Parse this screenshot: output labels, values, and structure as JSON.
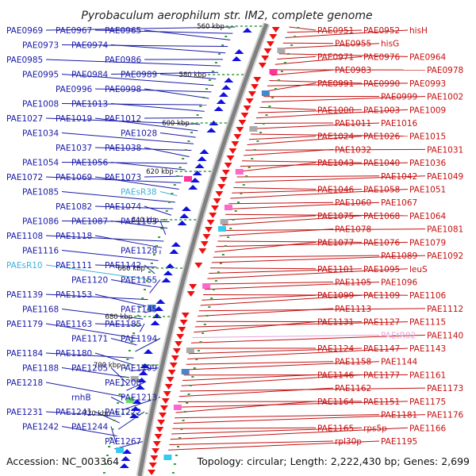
{
  "title": "Pyrobaculum aerophilum str. IM2, complete genome",
  "footer": {
    "accession": "Accession: NC_003364",
    "topology": "Topology: circular; Length: 2,222,430 bp; Genes: 2,699"
  },
  "colors": {
    "forward": "#1a1aa8",
    "reverse": "#c41010",
    "rna_forward": "#3fb0d8",
    "rna_reverse": "#e8a0d8",
    "backbone": "#808080",
    "tick": "#3a9a3a"
  },
  "kbp_ticks": [
    "560 kbp",
    "580 kbp",
    "600 kbp",
    "620 kbp",
    "640 kbp",
    "660 kbp",
    "680 kbp",
    "700 kbp",
    "720 kbp"
  ],
  "left_labels": [
    {
      "text": "PAE0969",
      "kind": "gene"
    },
    {
      "text": "PAE0967",
      "kind": "gene"
    },
    {
      "text": "PAE0965",
      "kind": "gene"
    },
    {
      "text": "PAE0973",
      "kind": "gene"
    },
    {
      "text": "PAE0974",
      "kind": "gene"
    },
    {
      "text": "PAE0986",
      "kind": "gene"
    },
    {
      "text": "PAE0985",
      "kind": "gene"
    },
    {
      "text": "PAE0984",
      "kind": "gene"
    },
    {
      "text": "PAE0989",
      "kind": "gene"
    },
    {
      "text": "PAE0995",
      "kind": "gene"
    },
    {
      "text": "PAE0996",
      "kind": "gene"
    },
    {
      "text": "PAE0998",
      "kind": "gene"
    },
    {
      "text": "PAE1008",
      "kind": "gene"
    },
    {
      "text": "PAE1013",
      "kind": "gene"
    },
    {
      "text": "PAE1012",
      "kind": "gene"
    },
    {
      "text": "PAE1027",
      "kind": "gene"
    },
    {
      "text": "PAE1019",
      "kind": "gene"
    },
    {
      "text": "PAE1028",
      "kind": "gene"
    },
    {
      "text": "PAE1034",
      "kind": "gene"
    },
    {
      "text": "PAE1037",
      "kind": "gene"
    },
    {
      "text": "PAE1038",
      "kind": "gene"
    },
    {
      "text": "PAE1054",
      "kind": "gene"
    },
    {
      "text": "PAE1056",
      "kind": "gene"
    },
    {
      "text": "PAE1073",
      "kind": "gene"
    },
    {
      "text": "PAE1072",
      "kind": "gene"
    },
    {
      "text": "PAE1069",
      "kind": "gene"
    },
    {
      "text": "PAEsR38",
      "kind": "rna"
    },
    {
      "text": "PAE1085",
      "kind": "gene"
    },
    {
      "text": "PAE1082",
      "kind": "gene"
    },
    {
      "text": "PAE1074",
      "kind": "gene"
    },
    {
      "text": "PAE1086",
      "kind": "gene"
    },
    {
      "text": "PAE1087",
      "kind": "gene"
    },
    {
      "text": "PAE1103",
      "kind": "gene"
    },
    {
      "text": "PAE1108",
      "kind": "gene"
    },
    {
      "text": "PAE1118",
      "kind": "gene"
    },
    {
      "text": "PAE1128",
      "kind": "gene"
    },
    {
      "text": "PAE1116",
      "kind": "gene"
    },
    {
      "text": "PAE1111",
      "kind": "gene"
    },
    {
      "text": "PAE1142",
      "kind": "gene"
    },
    {
      "text": "PAEsR10",
      "kind": "rna"
    },
    {
      "text": "PAE1120",
      "kind": "gene"
    },
    {
      "text": "PAE1155",
      "kind": "gene"
    },
    {
      "text": "PAE1139",
      "kind": "gene"
    },
    {
      "text": "PAE1153",
      "kind": "gene"
    },
    {
      "text": "PAE1145",
      "kind": "gene"
    },
    {
      "text": "PAE1168",
      "kind": "gene"
    },
    {
      "text": "PAE1163",
      "kind": "gene"
    },
    {
      "text": "PAE1185",
      "kind": "gene"
    },
    {
      "text": "PAE1179",
      "kind": "gene"
    },
    {
      "text": "PAE1171",
      "kind": "gene"
    },
    {
      "text": "PAE1194",
      "kind": "gene"
    },
    {
      "text": "PAE1184",
      "kind": "gene"
    },
    {
      "text": "PAE1180",
      "kind": "gene"
    },
    {
      "text": "PAE1199",
      "kind": "gene"
    },
    {
      "text": "PAE1188",
      "kind": "gene"
    },
    {
      "text": "PAE1205",
      "kind": "gene"
    },
    {
      "text": "PAE1200",
      "kind": "gene"
    },
    {
      "text": "PAE1218",
      "kind": "gene"
    },
    {
      "text": "rnhB",
      "kind": "gene"
    },
    {
      "text": "PAE1213",
      "kind": "gene"
    },
    {
      "text": "PAE1231",
      "kind": "gene"
    },
    {
      "text": "PAE1241",
      "kind": "gene"
    },
    {
      "text": "PAE1222",
      "kind": "gene"
    },
    {
      "text": "PAE1242",
      "kind": "gene"
    },
    {
      "text": "PAE1244",
      "kind": "gene"
    },
    {
      "text": "PAE1267",
      "kind": "gene"
    }
  ],
  "right_labels": [
    {
      "text": "PAE0951",
      "kind": "gene"
    },
    {
      "text": "PAE0952",
      "kind": "gene"
    },
    {
      "text": "hisH",
      "kind": "gene"
    },
    {
      "text": "PAE0955",
      "kind": "gene"
    },
    {
      "text": "hisG",
      "kind": "gene"
    },
    {
      "text": "PAE0964",
      "kind": "gene"
    },
    {
      "text": "PAE0971",
      "kind": "gene"
    },
    {
      "text": "PAE0976",
      "kind": "gene"
    },
    {
      "text": "PAE0978",
      "kind": "gene"
    },
    {
      "text": "PAE0983",
      "kind": "gene"
    },
    {
      "text": "PAE0990",
      "kind": "gene"
    },
    {
      "text": "PAE0993",
      "kind": "gene"
    },
    {
      "text": "PAE0991",
      "kind": "gene"
    },
    {
      "text": "PAE0999",
      "kind": "gene"
    },
    {
      "text": "PAE1002",
      "kind": "gene"
    },
    {
      "text": "PAE1000",
      "kind": "gene"
    },
    {
      "text": "PAE1003",
      "kind": "gene"
    },
    {
      "text": "PAE1009",
      "kind": "gene"
    },
    {
      "text": "PAE1011",
      "kind": "gene"
    },
    {
      "text": "PAE1016",
      "kind": "gene"
    },
    {
      "text": "PAE1015",
      "kind": "gene"
    },
    {
      "text": "PAE1024",
      "kind": "gene"
    },
    {
      "text": "PAE1026",
      "kind": "gene"
    },
    {
      "text": "PAE1031",
      "kind": "gene"
    },
    {
      "text": "PAE1032",
      "kind": "gene"
    },
    {
      "text": "PAE1040",
      "kind": "gene"
    },
    {
      "text": "PAE1036",
      "kind": "gene"
    },
    {
      "text": "PAE1043",
      "kind": "gene"
    },
    {
      "text": "PAE1042",
      "kind": "gene"
    },
    {
      "text": "PAE1049",
      "kind": "gene"
    },
    {
      "text": "PAE1046",
      "kind": "gene"
    },
    {
      "text": "PAE1058",
      "kind": "gene"
    },
    {
      "text": "PAE1051",
      "kind": "gene"
    },
    {
      "text": "PAE1060",
      "kind": "gene"
    },
    {
      "text": "PAE1067",
      "kind": "gene"
    },
    {
      "text": "PAE1064",
      "kind": "gene"
    },
    {
      "text": "PAE1075",
      "kind": "gene"
    },
    {
      "text": "PAE1068",
      "kind": "gene"
    },
    {
      "text": "PAE1081",
      "kind": "gene"
    },
    {
      "text": "PAE1078",
      "kind": "gene"
    },
    {
      "text": "PAE1076",
      "kind": "gene"
    },
    {
      "text": "PAE1079",
      "kind": "gene"
    },
    {
      "text": "PAE1077",
      "kind": "gene"
    },
    {
      "text": "PAE1089",
      "kind": "gene"
    },
    {
      "text": "PAE1092",
      "kind": "gene"
    },
    {
      "text": "PAE1101",
      "kind": "gene"
    },
    {
      "text": "PAE1095",
      "kind": "gene"
    },
    {
      "text": "leuS",
      "kind": "gene"
    },
    {
      "text": "PAE1105",
      "kind": "gene"
    },
    {
      "text": "PAE1096",
      "kind": "gene"
    },
    {
      "text": "PAE1106",
      "kind": "gene"
    },
    {
      "text": "PAE1099",
      "kind": "gene"
    },
    {
      "text": "PAE1109",
      "kind": "gene"
    },
    {
      "text": "PAE1112",
      "kind": "gene"
    },
    {
      "text": "PAE1113",
      "kind": "gene"
    },
    {
      "text": "PAE1127",
      "kind": "gene"
    },
    {
      "text": "PAE1115",
      "kind": "gene"
    },
    {
      "text": "PAE1131",
      "kind": "gene"
    },
    {
      "text": "PAEtR02",
      "kind": "rna"
    },
    {
      "text": "PAE1140",
      "kind": "gene"
    },
    {
      "text": "PAE1124",
      "kind": "gene"
    },
    {
      "text": "PAE1147",
      "kind": "gene"
    },
    {
      "text": "PAE1143",
      "kind": "gene"
    },
    {
      "text": "PAE1158",
      "kind": "gene"
    },
    {
      "text": "PAE1144",
      "kind": "gene"
    },
    {
      "text": "PAE1161",
      "kind": "gene"
    },
    {
      "text": "PAE1146",
      "kind": "gene"
    },
    {
      "text": "PAE1177",
      "kind": "gene"
    },
    {
      "text": "PAE1173",
      "kind": "gene"
    },
    {
      "text": "PAE1162",
      "kind": "gene"
    },
    {
      "text": "PAE1151",
      "kind": "gene"
    },
    {
      "text": "PAE1175",
      "kind": "gene"
    },
    {
      "text": "PAE1164",
      "kind": "gene"
    },
    {
      "text": "PAE1181",
      "kind": "gene"
    },
    {
      "text": "PAE1176",
      "kind": "gene"
    },
    {
      "text": "PAE1165",
      "kind": "gene"
    },
    {
      "text": "rps5p",
      "kind": "gene"
    },
    {
      "text": "PAE1166",
      "kind": "gene"
    },
    {
      "text": "rpl30p",
      "kind": "gene"
    },
    {
      "text": "PAE1195",
      "kind": "gene"
    }
  ]
}
